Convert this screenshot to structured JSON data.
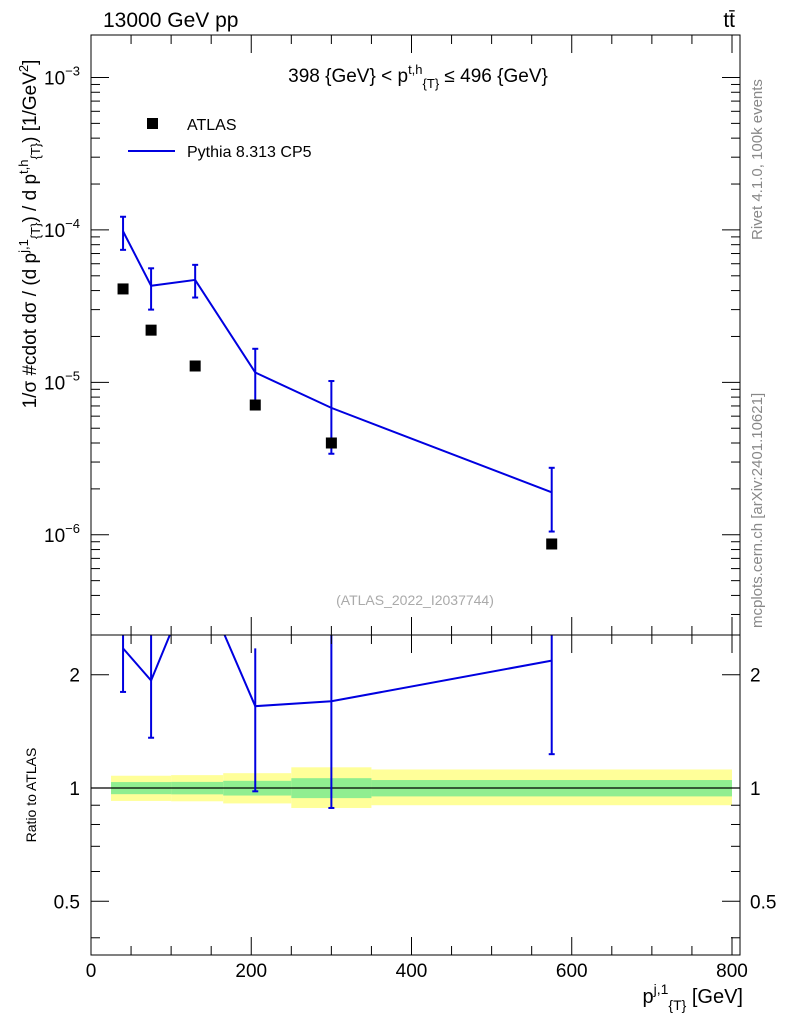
{
  "header": {
    "beam": "13000 GeV pp",
    "process": "tt̄"
  },
  "side_labels": {
    "rivet": "Rivet 4.1.0,  100k events",
    "site": "mcplots.cern.ch [arXiv:2401.10621]"
  },
  "chart_data": [
    {
      "type": "scatter",
      "panel": "main",
      "title": "398 {GeV} < p_{T}^{t,h} ≤ 496 {GeV}",
      "watermark": "(ATLAS_2022_I2037744)",
      "ylabel": "1/σ #cdot dσ / (d p_{T}^{j,1}) / d p_{T}^{t,h}) [1/GeV²]",
      "xlabel": "p_{T}^{j,1} [GeV]",
      "xlim": [
        0,
        810
      ],
      "ylim": [
        2.2e-07,
        0.0019
      ],
      "yscale": "log",
      "x_ticks": [
        "0",
        "200",
        "400",
        "600",
        "800"
      ],
      "y_ticks": [
        {
          "value": 1e-06,
          "mantissa": "10",
          "exp": "−6"
        },
        {
          "value": 1e-05,
          "mantissa": "10",
          "exp": "−5"
        },
        {
          "value": 0.0001,
          "mantissa": "10",
          "exp": "−4"
        },
        {
          "value": 0.001,
          "mantissa": "10",
          "exp": "−3"
        }
      ],
      "legend_position": "top-left",
      "series": [
        {
          "name": "ATLAS",
          "style": "markers",
          "color": "#000000",
          "x": [
            40,
            75,
            130,
            205,
            300,
            575
          ],
          "y": [
            4.1e-05,
            2.2e-05,
            1.28e-05,
            7.1e-06,
            4e-06,
            8.7e-07
          ]
        },
        {
          "name": "Pythia 8.313 CP5",
          "style": "line",
          "color": "#0000e0",
          "x": [
            40,
            75,
            130,
            205,
            300,
            575
          ],
          "y": [
            9.8e-05,
            4.3e-05,
            4.7e-05,
            1.16e-05,
            6.8e-06,
            1.9e-06
          ],
          "err_lo": [
            7.4e-05,
            3e-05,
            3.6e-05,
            7.1e-06,
            3.4e-06,
            1.05e-06
          ],
          "err_hi": [
            0.000122,
            5.6e-05,
            5.9e-05,
            1.66e-05,
            1.02e-05,
            2.75e-06
          ]
        }
      ]
    },
    {
      "type": "line",
      "panel": "ratio",
      "ylabel": "Ratio to ATLAS",
      "xlim": [
        0,
        810
      ],
      "ylim": [
        0.36,
        2.55
      ],
      "yscale": "log",
      "y_ticks": [
        "0.5",
        "1",
        "2"
      ],
      "y_tick_values": [
        0.5,
        1,
        2
      ],
      "reference": 1,
      "bands": [
        {
          "x0": 25,
          "x1": 100,
          "inner": [
            0.963,
            1.037
          ],
          "outer": [
            0.924,
            1.078
          ]
        },
        {
          "x0": 100,
          "x1": 165,
          "inner": [
            0.962,
            1.038
          ],
          "outer": [
            0.922,
            1.082
          ]
        },
        {
          "x0": 165,
          "x1": 250,
          "inner": [
            0.955,
            1.045
          ],
          "outer": [
            0.91,
            1.095
          ]
        },
        {
          "x0": 250,
          "x1": 350,
          "inner": [
            0.94,
            1.062
          ],
          "outer": [
            0.885,
            1.135
          ]
        },
        {
          "x0": 350,
          "x1": 800,
          "inner": [
            0.95,
            1.05
          ],
          "outer": [
            0.9,
            1.12
          ]
        }
      ],
      "band_colors": {
        "inner": "#90ee90",
        "outer": "#ffff99"
      },
      "series": [
        {
          "name": "Pythia 8.313 CP5",
          "color": "#0000e0",
          "x": [
            40,
            75,
            100,
            165,
            205,
            300,
            575
          ],
          "y": [
            2.35,
            1.93,
            2.6,
            2.6,
            1.65,
            1.7,
            2.18
          ],
          "markers_x": [
            40,
            75,
            205,
            300,
            575
          ],
          "markers_y": [
            2.35,
            1.93,
            1.65,
            1.7,
            2.18
          ],
          "err_lo": [
            1.8,
            1.36,
            0.98,
            0.885,
            1.23
          ],
          "err_hi": [
            2.6,
            2.6,
            2.35,
            2.6,
            2.6
          ]
        }
      ]
    }
  ]
}
